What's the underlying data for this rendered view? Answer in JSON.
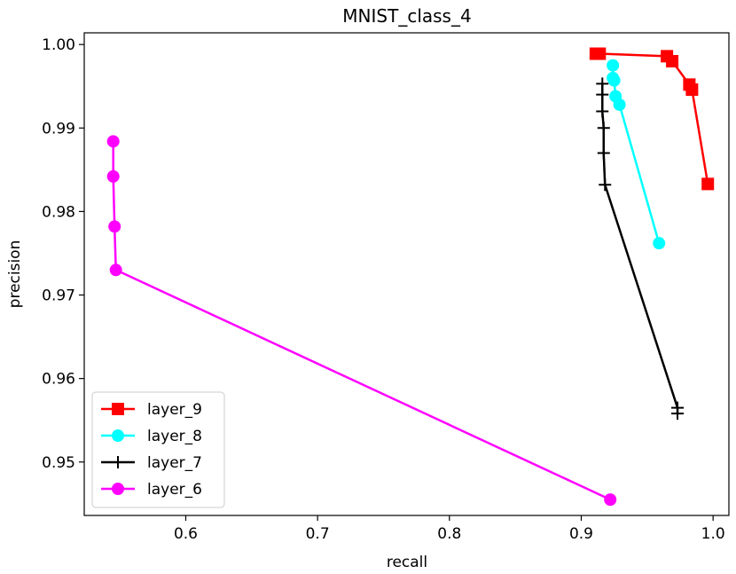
{
  "chart_data": {
    "type": "line",
    "title": "MNIST_class_4",
    "xlabel": "recall",
    "ylabel": "precision",
    "xlim": [
      0.523,
      1.012
    ],
    "ylim": [
      0.9436,
      1.0014
    ],
    "xticks": [
      0.6,
      0.7,
      0.8,
      0.9,
      1.0
    ],
    "xtick_labels": [
      "0.6",
      "0.7",
      "0.8",
      "0.9",
      "1.0"
    ],
    "yticks": [
      0.95,
      0.96,
      0.97,
      0.98,
      0.99,
      1.0
    ],
    "ytick_labels": [
      "0.95",
      "0.96",
      "0.97",
      "0.98",
      "0.99",
      "1.00"
    ],
    "grid": false,
    "legend_position": "lower-left",
    "series": [
      {
        "name": "layer_9",
        "color": "#ff0000",
        "marker": "square",
        "x": [
          0.911,
          0.914,
          0.965,
          0.969,
          0.982,
          0.984,
          0.996
        ],
        "y": [
          0.9989,
          0.9989,
          0.9986,
          0.998,
          0.9952,
          0.9946,
          0.9833
        ]
      },
      {
        "name": "layer_8",
        "color": "#00ffff",
        "marker": "circle",
        "x": [
          0.924,
          0.924,
          0.925,
          0.926,
          0.929,
          0.959
        ],
        "y": [
          0.9975,
          0.996,
          0.9957,
          0.9938,
          0.9928,
          0.9762
        ]
      },
      {
        "name": "layer_7",
        "color": "#000000",
        "marker": "plus",
        "x": [
          0.916,
          0.916,
          0.916,
          0.917,
          0.917,
          0.918,
          0.973,
          0.973
        ],
        "y": [
          0.9953,
          0.994,
          0.992,
          0.99,
          0.987,
          0.9832,
          0.9565,
          0.9558
        ]
      },
      {
        "name": "layer_6",
        "color": "#ff00ff",
        "marker": "circle",
        "x": [
          0.545,
          0.545,
          0.546,
          0.547,
          0.922
        ],
        "y": [
          0.9884,
          0.9842,
          0.9782,
          0.973,
          0.9455
        ]
      }
    ]
  }
}
